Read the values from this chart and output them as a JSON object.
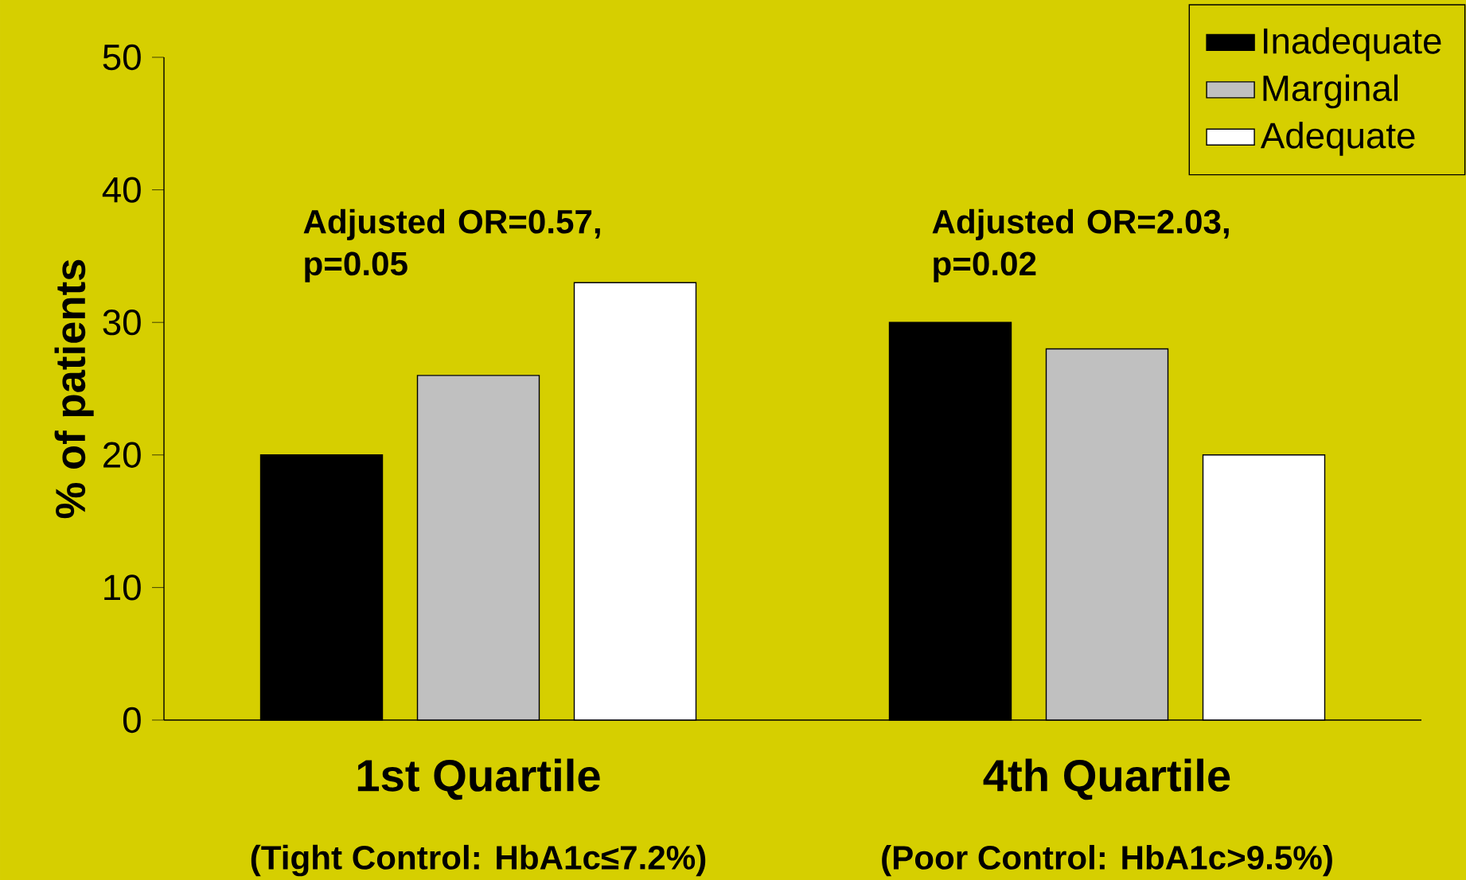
{
  "chart_data": {
    "type": "bar",
    "ylabel": "% of patients",
    "categories": [
      "1st Quartile",
      "4th Quartile"
    ],
    "series": [
      {
        "name": "Inadequate",
        "color": "#000000",
        "values": [
          20,
          30
        ]
      },
      {
        "name": "Marginal",
        "color": "#c0c0c0",
        "values": [
          26,
          28
        ]
      },
      {
        "name": "Adequate",
        "color": "#ffffff",
        "values": [
          33,
          20
        ]
      }
    ],
    "ylim": [
      0,
      50
    ],
    "yticks": [
      0,
      10,
      20,
      30,
      40,
      50
    ],
    "legend": "top right",
    "grid": false,
    "annotations": [
      "Adjusted OR=0.57, p=0.05",
      "Adjusted OR=2.03, p=0.02",
      "(Tight Control: HbA1c≤7.2%)",
      "(Poor Control: HbA1c>9.5%)"
    ]
  }
}
